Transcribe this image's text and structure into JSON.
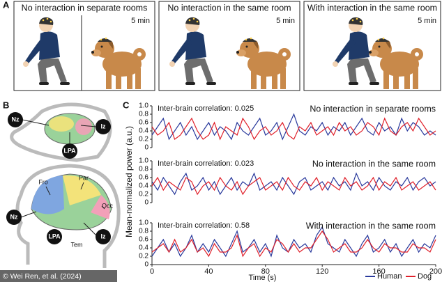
{
  "panel_labels": [
    "A",
    "B",
    "C"
  ],
  "panel_a": {
    "scenes": [
      {
        "title": "No interaction in separate rooms",
        "duration": "5 min"
      },
      {
        "title": "No interaction in the same room",
        "duration": "5 min"
      },
      {
        "title": "With interaction in the same room",
        "duration": "5 min"
      }
    ]
  },
  "panel_b": {
    "dog_labels": [
      "Nz",
      "Iz",
      "LPA"
    ],
    "human_labels": [
      "Fro",
      "Par",
      "Occ",
      "Nz",
      "LPA",
      "Tem",
      "Iz"
    ]
  },
  "credit": "© Wei Ren, et al. (2024)",
  "chart_data": [
    {
      "type": "line",
      "title": "No interaction in separate rooms",
      "annotation": "Inter-brain correlation: 0.025",
      "x": [
        0,
        4,
        8,
        12,
        16,
        20,
        24,
        28,
        32,
        36,
        40,
        44,
        48,
        52,
        56,
        60,
        64,
        68,
        72,
        76,
        80,
        84,
        88,
        92,
        96,
        100,
        104,
        108,
        112,
        116,
        120,
        124,
        128,
        132,
        136,
        140,
        144,
        148,
        152,
        156,
        160,
        164,
        168,
        172,
        176,
        180,
        184,
        188,
        192,
        196,
        200
      ],
      "xlim": [
        0,
        200
      ],
      "ylim": [
        0,
        1
      ],
      "yticks": [
        0,
        0.2,
        0.4,
        0.6,
        0.8,
        {
          "value": 1,
          "label": "1.0"
        }
      ],
      "series": [
        {
          "color": "#2a3a9c",
          "values": [
            0.3,
            0.5,
            0.7,
            0.2,
            0.4,
            0.6,
            0.3,
            0.5,
            0.2,
            0.4,
            0.6,
            0.3,
            0.5,
            0.4,
            0.2,
            0.6,
            0.4,
            0.3,
            0.5,
            0.7,
            0.3,
            0.4,
            0.6,
            0.2,
            0.5,
            0.8,
            0.4,
            0.3,
            0.5,
            0.4,
            0.6,
            0.3,
            0.5,
            0.4,
            0.6,
            0.3,
            0.5,
            0.7,
            0.4,
            0.3,
            0.6,
            0.4,
            0.5,
            0.3,
            0.7,
            0.4,
            0.6,
            0.5,
            0.3,
            0.4,
            0.3
          ]
        },
        {
          "color": "#e0202a",
          "values": [
            0.5,
            0.3,
            0.4,
            0.6,
            0.2,
            0.3,
            0.5,
            0.7,
            0.4,
            0.2,
            0.3,
            0.6,
            0.2,
            0.5,
            0.4,
            0.3,
            0.7,
            0.5,
            0.2,
            0.4,
            0.5,
            0.3,
            0.4,
            0.6,
            0.3,
            0.2,
            0.5,
            0.4,
            0.6,
            0.3,
            0.4,
            0.5,
            0.3,
            0.6,
            0.4,
            0.5,
            0.3,
            0.4,
            0.6,
            0.5,
            0.3,
            0.7,
            0.4,
            0.3,
            0.5,
            0.6,
            0.4,
            0.7,
            0.5,
            0.3,
            0.4
          ]
        }
      ]
    },
    {
      "type": "line",
      "title": "No interaction in the same room",
      "annotation": "Inter-brain correlation: 0.023",
      "ylabel": "Mean-normalized power (a.u.)",
      "x": [
        0,
        4,
        8,
        12,
        16,
        20,
        24,
        28,
        32,
        36,
        40,
        44,
        48,
        52,
        56,
        60,
        64,
        68,
        72,
        76,
        80,
        84,
        88,
        92,
        96,
        100,
        104,
        108,
        112,
        116,
        120,
        124,
        128,
        132,
        136,
        140,
        144,
        148,
        152,
        156,
        160,
        164,
        168,
        172,
        176,
        180,
        184,
        188,
        192,
        196,
        200
      ],
      "xlim": [
        0,
        200
      ],
      "ylim": [
        0,
        1
      ],
      "yticks": [
        0,
        0.2,
        0.4,
        0.6,
        0.8,
        {
          "value": 1,
          "label": "1.0"
        }
      ],
      "series": [
        {
          "color": "#2a3a9c",
          "values": [
            0.5,
            0.3,
            0.6,
            0.4,
            0.2,
            0.5,
            0.7,
            0.3,
            0.4,
            0.6,
            0.3,
            0.5,
            0.2,
            0.4,
            0.6,
            0.3,
            0.5,
            0.4,
            0.7,
            0.3,
            0.4,
            0.5,
            0.3,
            0.6,
            0.4,
            0.2,
            0.5,
            0.6,
            0.3,
            0.4,
            0.5,
            0.3,
            0.6,
            0.4,
            0.5,
            0.3,
            0.7,
            0.4,
            0.5,
            0.3,
            0.6,
            0.4,
            0.3,
            0.5,
            0.4,
            0.6,
            0.3,
            0.5,
            0.6,
            0.4,
            0.5
          ]
        },
        {
          "color": "#e0202a",
          "values": [
            0.4,
            0.6,
            0.3,
            0.5,
            0.4,
            0.3,
            0.6,
            0.5,
            0.2,
            0.4,
            0.5,
            0.3,
            0.6,
            0.4,
            0.3,
            0.5,
            0.2,
            0.4,
            0.5,
            0.6,
            0.3,
            0.4,
            0.5,
            0.3,
            0.6,
            0.4,
            0.3,
            0.5,
            0.4,
            0.6,
            0.3,
            0.5,
            0.4,
            0.3,
            0.6,
            0.4,
            0.5,
            0.3,
            0.4,
            0.6,
            0.3,
            0.5,
            0.4,
            0.6,
            0.3,
            0.4,
            0.5,
            0.3,
            0.4,
            0.5,
            0.3
          ]
        }
      ]
    },
    {
      "type": "line",
      "title": "With interaction in the same room",
      "annotation": "Inter-brain correlation: 0.58",
      "xlabel": "Time (s)",
      "x": [
        0,
        4,
        8,
        12,
        16,
        20,
        24,
        28,
        32,
        36,
        40,
        44,
        48,
        52,
        56,
        60,
        64,
        68,
        72,
        76,
        80,
        84,
        88,
        92,
        96,
        100,
        104,
        108,
        112,
        116,
        120,
        124,
        128,
        132,
        136,
        140,
        144,
        148,
        152,
        156,
        160,
        164,
        168,
        172,
        176,
        180,
        184,
        188,
        192,
        196,
        200
      ],
      "xlim": [
        0,
        200
      ],
      "xticks": [
        0,
        40,
        80,
        120,
        160,
        200
      ],
      "ylim": [
        0,
        1
      ],
      "yticks": [
        0,
        0.2,
        0.4,
        0.6,
        0.8,
        {
          "value": 1,
          "label": "1.0"
        }
      ],
      "series": [
        {
          "name": "Human",
          "color": "#2a3a9c",
          "values": [
            0.2,
            0.4,
            0.6,
            0.3,
            0.5,
            0.2,
            0.4,
            0.7,
            0.3,
            0.5,
            0.3,
            0.6,
            0.4,
            0.2,
            0.5,
            0.8,
            0.3,
            0.4,
            0.6,
            0.3,
            0.5,
            0.2,
            0.7,
            0.4,
            0.3,
            0.6,
            0.4,
            0.5,
            0.3,
            0.7,
            0.9,
            0.5,
            0.4,
            0.3,
            0.6,
            0.4,
            0.2,
            0.5,
            0.7,
            0.3,
            0.4,
            0.6,
            0.3,
            0.5,
            0.2,
            0.4,
            0.6,
            0.3,
            0.5,
            0.4,
            0.7
          ]
        },
        {
          "name": "Dog",
          "color": "#e0202a",
          "values": [
            0.3,
            0.4,
            0.5,
            0.3,
            0.6,
            0.3,
            0.4,
            0.6,
            0.3,
            0.4,
            0.2,
            0.5,
            0.3,
            0.3,
            0.4,
            0.7,
            0.2,
            0.4,
            0.5,
            0.2,
            0.4,
            0.3,
            0.6,
            0.5,
            0.3,
            0.5,
            0.3,
            0.4,
            0.4,
            0.6,
            0.8,
            0.6,
            0.3,
            0.4,
            0.5,
            0.3,
            0.3,
            0.4,
            0.6,
            0.4,
            0.3,
            0.5,
            0.4,
            0.4,
            0.3,
            0.3,
            0.5,
            0.4,
            0.4,
            0.3,
            0.6
          ]
        }
      ]
    }
  ]
}
